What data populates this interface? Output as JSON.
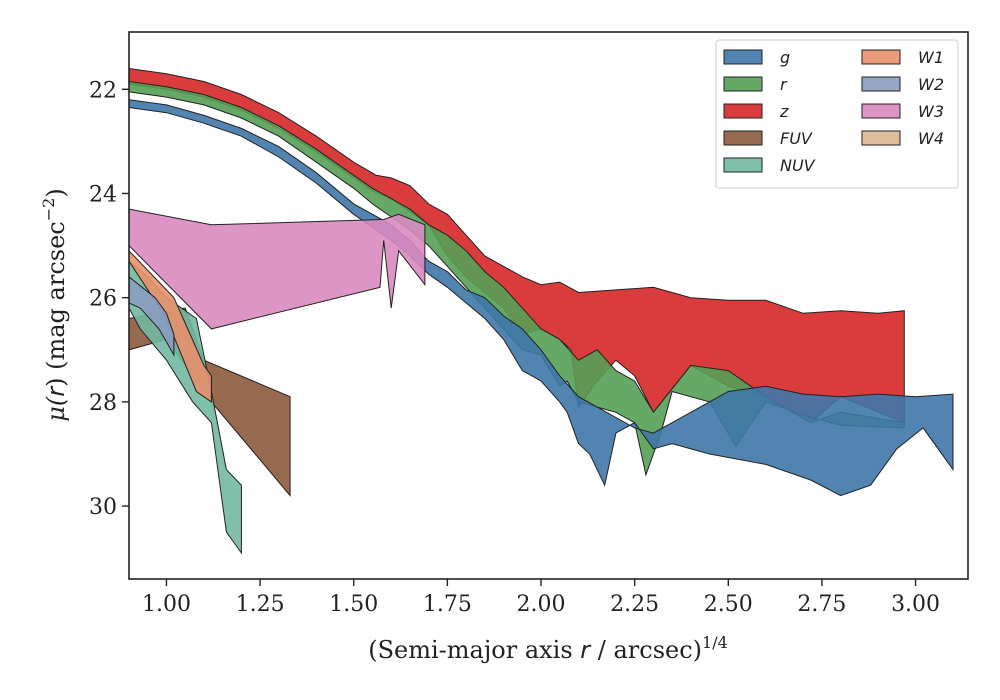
{
  "chart_data": {
    "type": "area",
    "xlabel_main": "(Semi-major axis ",
    "xlabel_var": "r",
    "xlabel_rest": " / arcsec)",
    "xlabel_sup": "1/4",
    "ylabel_main": "μ(",
    "ylabel_var": "r",
    "ylabel_rest": ") (mag arcsec",
    "ylabel_sup": "−2",
    "ylabel_close": ")",
    "xlim": [
      0.9,
      3.14
    ],
    "ylim": [
      31.4,
      20.9
    ],
    "y_inverted": true,
    "x_ticks": [
      "1.00",
      "1.25",
      "1.50",
      "1.75",
      "2.00",
      "2.25",
      "2.50",
      "2.75",
      "3.00"
    ],
    "y_ticks": [
      "22",
      "24",
      "26",
      "28",
      "30"
    ],
    "grid": false,
    "legend_position": "top-right",
    "series": [
      {
        "name": "z",
        "color": "#d62728",
        "upper": [
          [
            0.9,
            21.6
          ],
          [
            1.0,
            21.7
          ],
          [
            1.1,
            21.85
          ],
          [
            1.2,
            22.1
          ],
          [
            1.3,
            22.45
          ],
          [
            1.4,
            22.9
          ],
          [
            1.5,
            23.4
          ],
          [
            1.56,
            23.65
          ],
          [
            1.6,
            23.7
          ],
          [
            1.65,
            23.85
          ],
          [
            1.7,
            24.2
          ],
          [
            1.75,
            24.4
          ],
          [
            1.8,
            24.8
          ],
          [
            1.85,
            25.2
          ],
          [
            1.9,
            25.4
          ],
          [
            1.95,
            25.6
          ],
          [
            2.0,
            25.75
          ],
          [
            2.05,
            25.7
          ],
          [
            2.1,
            25.9
          ],
          [
            2.2,
            25.85
          ],
          [
            2.3,
            25.8
          ],
          [
            2.4,
            26.0
          ],
          [
            2.5,
            26.05
          ],
          [
            2.6,
            26.05
          ],
          [
            2.7,
            26.3
          ],
          [
            2.8,
            26.25
          ],
          [
            2.9,
            26.3
          ],
          [
            2.97,
            26.25
          ]
        ],
        "lower": [
          [
            2.97,
            28.4
          ],
          [
            2.8,
            27.9
          ],
          [
            2.72,
            28.4
          ],
          [
            2.6,
            27.9
          ],
          [
            2.5,
            27.7
          ],
          [
            2.4,
            27.3
          ],
          [
            2.3,
            28.2
          ],
          [
            2.25,
            27.5
          ],
          [
            2.2,
            27.2
          ],
          [
            2.15,
            27.6
          ],
          [
            2.1,
            28.1
          ],
          [
            2.08,
            27.0
          ],
          [
            2.05,
            26.8
          ],
          [
            2.0,
            26.6
          ],
          [
            1.95,
            26.7
          ],
          [
            1.9,
            26.2
          ],
          [
            1.85,
            25.9
          ],
          [
            1.8,
            25.6
          ],
          [
            1.75,
            25.2
          ],
          [
            1.7,
            24.6
          ],
          [
            1.65,
            24.35
          ],
          [
            1.6,
            24.1
          ],
          [
            1.55,
            23.95
          ],
          [
            1.5,
            23.7
          ],
          [
            1.4,
            23.2
          ],
          [
            1.3,
            22.75
          ],
          [
            1.2,
            22.4
          ],
          [
            1.1,
            22.15
          ],
          [
            1.0,
            22.0
          ],
          [
            0.9,
            21.9
          ]
        ]
      },
      {
        "name": "r",
        "color": "#55a055",
        "upper": [
          [
            0.9,
            21.85
          ],
          [
            1.0,
            21.95
          ],
          [
            1.1,
            22.1
          ],
          [
            1.2,
            22.35
          ],
          [
            1.3,
            22.7
          ],
          [
            1.4,
            23.15
          ],
          [
            1.5,
            23.65
          ],
          [
            1.55,
            23.9
          ],
          [
            1.6,
            24.1
          ],
          [
            1.65,
            24.3
          ],
          [
            1.7,
            24.6
          ],
          [
            1.75,
            24.8
          ],
          [
            1.8,
            25.1
          ],
          [
            1.85,
            25.5
          ],
          [
            1.9,
            25.8
          ],
          [
            1.95,
            26.2
          ],
          [
            2.0,
            26.6
          ],
          [
            2.05,
            26.8
          ],
          [
            2.1,
            27.2
          ],
          [
            2.15,
            27.0
          ],
          [
            2.2,
            27.4
          ],
          [
            2.25,
            27.6
          ],
          [
            2.3,
            28.2
          ],
          [
            2.4,
            27.3
          ],
          [
            2.5,
            27.4
          ],
          [
            2.6,
            27.9
          ],
          [
            2.72,
            28.4
          ],
          [
            2.8,
            28.2
          ],
          [
            2.97,
            28.4
          ]
        ],
        "lower": [
          [
            2.97,
            28.5
          ],
          [
            2.8,
            28.45
          ],
          [
            2.72,
            28.3
          ],
          [
            2.6,
            28.0
          ],
          [
            2.52,
            28.85
          ],
          [
            2.45,
            28.0
          ],
          [
            2.35,
            27.8
          ],
          [
            2.32,
            28.6
          ],
          [
            2.28,
            29.4
          ],
          [
            2.25,
            28.4
          ],
          [
            2.2,
            28.2
          ],
          [
            2.1,
            28.0
          ],
          [
            2.07,
            27.6
          ],
          [
            2.05,
            27.7
          ],
          [
            2.0,
            27.1
          ],
          [
            1.95,
            27.0
          ],
          [
            1.9,
            26.6
          ],
          [
            1.85,
            26.2
          ],
          [
            1.8,
            25.8
          ],
          [
            1.75,
            25.4
          ],
          [
            1.7,
            25.0
          ],
          [
            1.65,
            24.7
          ],
          [
            1.6,
            24.45
          ],
          [
            1.55,
            24.2
          ],
          [
            1.5,
            23.9
          ],
          [
            1.4,
            23.4
          ],
          [
            1.3,
            22.9
          ],
          [
            1.2,
            22.55
          ],
          [
            1.1,
            22.3
          ],
          [
            1.0,
            22.15
          ],
          [
            0.9,
            22.05
          ]
        ]
      },
      {
        "name": "g",
        "color": "#3f77aa",
        "upper": [
          [
            0.9,
            22.2
          ],
          [
            1.0,
            22.3
          ],
          [
            1.1,
            22.5
          ],
          [
            1.2,
            22.75
          ],
          [
            1.3,
            23.1
          ],
          [
            1.4,
            23.6
          ],
          [
            1.5,
            24.2
          ],
          [
            1.55,
            24.4
          ],
          [
            1.6,
            24.6
          ],
          [
            1.65,
            24.9
          ],
          [
            1.7,
            25.3
          ],
          [
            1.75,
            25.5
          ],
          [
            1.8,
            25.85
          ],
          [
            1.85,
            26.0
          ],
          [
            1.9,
            26.35
          ],
          [
            1.95,
            26.6
          ],
          [
            2.0,
            27.0
          ],
          [
            2.05,
            27.5
          ],
          [
            2.1,
            27.9
          ],
          [
            2.15,
            28.1
          ],
          [
            2.2,
            28.3
          ],
          [
            2.25,
            28.5
          ],
          [
            2.3,
            28.6
          ],
          [
            2.4,
            28.2
          ],
          [
            2.5,
            27.8
          ],
          [
            2.6,
            27.7
          ],
          [
            2.7,
            27.85
          ],
          [
            2.8,
            27.9
          ],
          [
            2.9,
            27.85
          ],
          [
            3.0,
            27.9
          ],
          [
            3.1,
            27.85
          ]
        ],
        "lower": [
          [
            3.1,
            29.3
          ],
          [
            3.02,
            28.5
          ],
          [
            2.95,
            28.9
          ],
          [
            2.88,
            29.6
          ],
          [
            2.8,
            29.8
          ],
          [
            2.72,
            29.5
          ],
          [
            2.6,
            29.2
          ],
          [
            2.45,
            29.0
          ],
          [
            2.35,
            28.8
          ],
          [
            2.3,
            28.9
          ],
          [
            2.25,
            28.4
          ],
          [
            2.2,
            28.6
          ],
          [
            2.17,
            29.6
          ],
          [
            2.13,
            29.0
          ],
          [
            2.1,
            28.8
          ],
          [
            2.07,
            28.2
          ],
          [
            2.05,
            28.0
          ],
          [
            2.0,
            27.6
          ],
          [
            1.95,
            27.4
          ],
          [
            1.9,
            26.8
          ],
          [
            1.85,
            26.4
          ],
          [
            1.8,
            26.1
          ],
          [
            1.75,
            25.8
          ],
          [
            1.7,
            25.55
          ],
          [
            1.65,
            25.2
          ],
          [
            1.6,
            24.9
          ],
          [
            1.55,
            24.65
          ],
          [
            1.5,
            24.4
          ],
          [
            1.4,
            23.8
          ],
          [
            1.3,
            23.3
          ],
          [
            1.2,
            22.9
          ],
          [
            1.1,
            22.65
          ],
          [
            1.0,
            22.45
          ],
          [
            0.9,
            22.35
          ]
        ]
      },
      {
        "name": "W3",
        "color": "#d98ac0",
        "upper": [
          [
            0.9,
            24.3
          ],
          [
            1.12,
            24.6
          ],
          [
            1.58,
            24.5
          ],
          [
            1.62,
            24.4
          ],
          [
            1.69,
            24.6
          ]
        ],
        "lower": [
          [
            1.69,
            25.75
          ],
          [
            1.62,
            25.1
          ],
          [
            1.6,
            26.2
          ],
          [
            1.58,
            24.9
          ],
          [
            1.57,
            25.8
          ],
          [
            1.12,
            26.6
          ],
          [
            0.9,
            25.0
          ]
        ]
      },
      {
        "name": "FUV",
        "color": "#8c5a3c",
        "upper": [
          [
            0.9,
            26.4
          ],
          [
            1.05,
            26.2
          ],
          [
            1.1,
            27.2
          ],
          [
            1.33,
            27.9
          ]
        ],
        "lower": [
          [
            1.33,
            29.8
          ],
          [
            1.12,
            28.0
          ],
          [
            1.0,
            26.8
          ],
          [
            0.9,
            27.0
          ]
        ]
      },
      {
        "name": "NUV",
        "color": "#72b8a0",
        "upper": [
          [
            0.9,
            25.3
          ],
          [
            0.95,
            25.6
          ],
          [
            1.0,
            26.0
          ],
          [
            1.08,
            26.4
          ],
          [
            1.12,
            27.8
          ],
          [
            1.16,
            29.3
          ],
          [
            1.2,
            29.6
          ]
        ],
        "lower": [
          [
            1.2,
            30.9
          ],
          [
            1.16,
            30.5
          ],
          [
            1.12,
            28.4
          ],
          [
            1.07,
            28.0
          ],
          [
            1.0,
            27.2
          ],
          [
            0.93,
            26.6
          ],
          [
            0.9,
            26.2
          ]
        ]
      },
      {
        "name": "W1",
        "color": "#e8906a",
        "upper": [
          [
            0.9,
            25.1
          ],
          [
            1.02,
            26.0
          ],
          [
            1.1,
            27.3
          ],
          [
            1.12,
            27.5
          ]
        ],
        "lower": [
          [
            1.12,
            28.0
          ],
          [
            1.08,
            27.8
          ],
          [
            1.0,
            26.4
          ],
          [
            0.9,
            25.3
          ]
        ]
      },
      {
        "name": "W2",
        "color": "#8a9cc0",
        "upper": [
          [
            0.9,
            25.6
          ],
          [
            0.97,
            26.0
          ],
          [
            1.0,
            26.3
          ],
          [
            1.02,
            26.7
          ]
        ],
        "lower": [
          [
            1.02,
            27.1
          ],
          [
            0.98,
            26.6
          ],
          [
            0.93,
            26.2
          ],
          [
            0.9,
            26.1
          ]
        ]
      },
      {
        "name": "W4",
        "color": "#dcb894",
        "upper": [],
        "lower": []
      }
    ],
    "legend": [
      {
        "name": "g",
        "color": "#3f77aa"
      },
      {
        "name": "r",
        "color": "#55a055"
      },
      {
        "name": "z",
        "color": "#d62728"
      },
      {
        "name": "FUV",
        "color": "#8c5a3c"
      },
      {
        "name": "NUV",
        "color": "#72b8a0"
      },
      {
        "name": "W1",
        "color": "#e8906a"
      },
      {
        "name": "W2",
        "color": "#8a9cc0"
      },
      {
        "name": "W3",
        "color": "#d98ac0"
      },
      {
        "name": "W4",
        "color": "#dcb894"
      }
    ]
  }
}
